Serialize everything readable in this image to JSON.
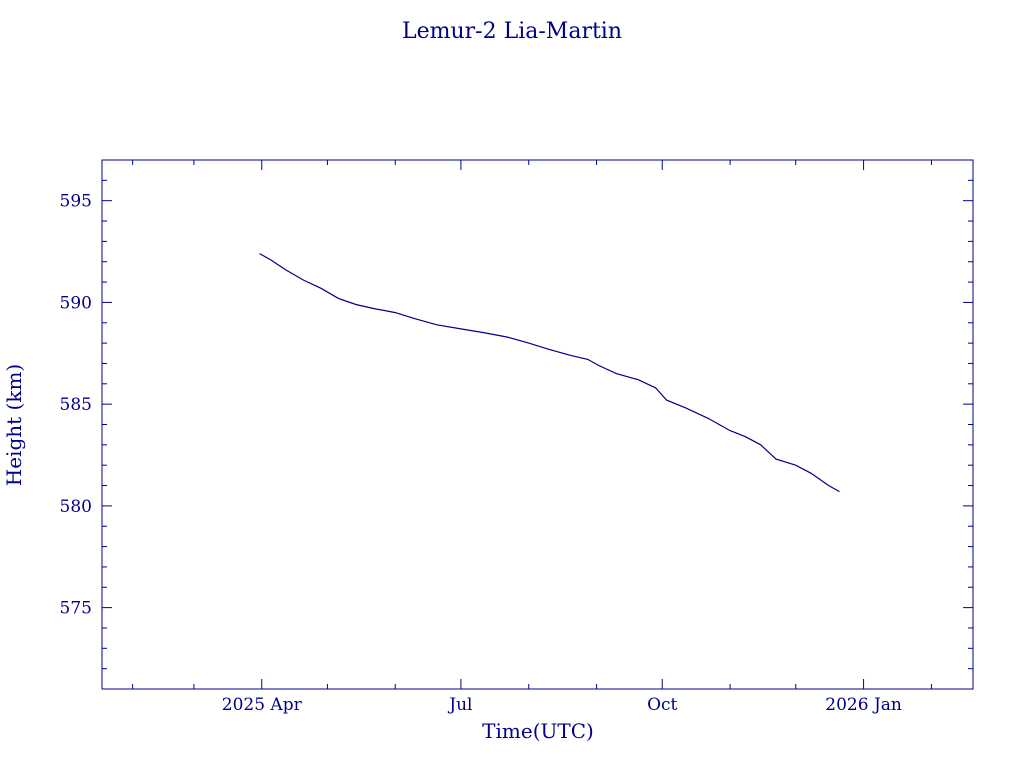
{
  "chart_data": {
    "type": "line",
    "title": "Lemur-2 Lia-Martin",
    "xlabel": "Time(UTC)",
    "ylabel": "Height (km)",
    "xlim": [
      "2025-01-18",
      "2026-02-20"
    ],
    "ylim": [
      571,
      597
    ],
    "x_ticks": [
      {
        "date": "2025-04-01",
        "label": "2025 Apr"
      },
      {
        "date": "2025-07-01",
        "label": "Jul"
      },
      {
        "date": "2025-10-01",
        "label": "Oct"
      },
      {
        "date": "2026-01-01",
        "label": "2026 Jan"
      }
    ],
    "y_ticks": [
      575,
      580,
      585,
      590,
      595
    ],
    "grid": false,
    "color": "#00008b",
    "series": [
      {
        "x": [
          "2025-03-31",
          "2025-04-05",
          "2025-04-12",
          "2025-04-20",
          "2025-04-28",
          "2025-05-06",
          "2025-05-14",
          "2025-05-22",
          "2025-06-01",
          "2025-06-10",
          "2025-06-20",
          "2025-07-01",
          "2025-07-12",
          "2025-07-22",
          "2025-08-01",
          "2025-08-10",
          "2025-08-20",
          "2025-08-28",
          "2025-09-02",
          "2025-09-10",
          "2025-09-20",
          "2025-09-28",
          "2025-10-03",
          "2025-10-12",
          "2025-10-22",
          "2025-11-01",
          "2025-11-08",
          "2025-11-15",
          "2025-11-22",
          "2025-12-01",
          "2025-12-08",
          "2025-12-16",
          "2025-12-21"
        ],
        "y": [
          592.4,
          592.1,
          591.6,
          591.1,
          590.7,
          590.2,
          589.9,
          589.7,
          589.5,
          589.2,
          588.9,
          588.7,
          588.5,
          588.3,
          588.0,
          587.7,
          587.4,
          587.2,
          586.9,
          586.5,
          586.2,
          585.8,
          585.2,
          584.8,
          584.3,
          583.7,
          583.4,
          583.0,
          582.3,
          582.0,
          581.6,
          581.0,
          580.7
        ]
      }
    ]
  }
}
